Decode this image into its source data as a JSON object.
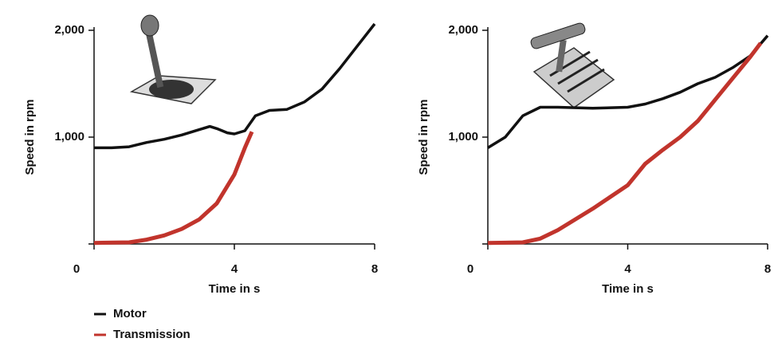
{
  "chart_data": [
    {
      "type": "line",
      "xlabel": "Time in s",
      "ylabel": "Speed in rpm",
      "xlim": [
        0,
        8
      ],
      "xticks": [
        0,
        4,
        8
      ],
      "ylim": [
        0,
        2000
      ],
      "yticks": [
        0,
        {
          "value": 1000,
          "label": "1,000"
        },
        {
          "value": 2000,
          "label": "2,000"
        }
      ],
      "series": [
        {
          "name": "Motor",
          "color": "#111111",
          "x": [
            0,
            0.5,
            1,
            1.5,
            2,
            2.5,
            3,
            3.3,
            3.5,
            3.8,
            4,
            4.3,
            4.6,
            5,
            5.5,
            6,
            6.5,
            7,
            7.5,
            8
          ],
          "values": [
            900,
            900,
            910,
            950,
            980,
            1020,
            1070,
            1100,
            1080,
            1040,
            1030,
            1060,
            1200,
            1250,
            1260,
            1330,
            1450,
            1640,
            1850,
            2060
          ]
        },
        {
          "name": "Transmission",
          "color": "#c1342c",
          "x": [
            0,
            1,
            1.5,
            2,
            2.5,
            3,
            3.5,
            4,
            4.3,
            4.5
          ],
          "values": [
            10,
            15,
            40,
            80,
            140,
            230,
            380,
            650,
            900,
            1050
          ]
        }
      ]
    },
    {
      "type": "line",
      "xlabel": "Time in s",
      "ylabel": "Speed in rpm",
      "xlim": [
        0,
        8
      ],
      "xticks": [
        0,
        4,
        8
      ],
      "ylim": [
        0,
        2000
      ],
      "yticks": [
        0,
        {
          "value": 1000,
          "label": "1,000"
        },
        {
          "value": 2000,
          "label": "2,000"
        }
      ],
      "series": [
        {
          "name": "Motor",
          "color": "#111111",
          "x": [
            0,
            0.5,
            1,
            1.5,
            2,
            3,
            4,
            4.5,
            5,
            5.5,
            6,
            6.5,
            7,
            7.5,
            8
          ],
          "values": [
            900,
            1000,
            1200,
            1280,
            1280,
            1270,
            1280,
            1310,
            1360,
            1420,
            1500,
            1560,
            1650,
            1760,
            1950
          ]
        },
        {
          "name": "Transmission",
          "color": "#c1342c",
          "x": [
            0,
            1,
            1.5,
            2,
            3,
            4,
            4.5,
            5,
            5.5,
            6,
            6.5,
            7,
            7.5,
            7.8
          ],
          "values": [
            10,
            15,
            50,
            130,
            330,
            550,
            750,
            880,
            1000,
            1150,
            1350,
            1550,
            1750,
            1880
          ]
        }
      ]
    }
  ]
}
